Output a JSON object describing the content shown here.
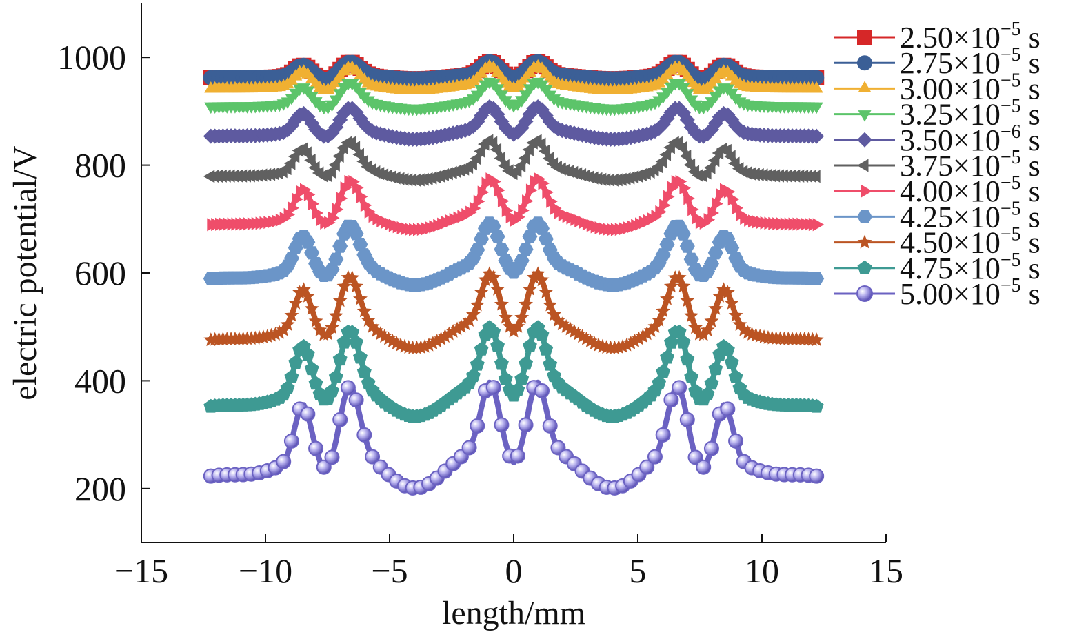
{
  "chart_data": {
    "type": "line",
    "xlabel": "length/mm",
    "ylabel": "electric potential/V",
    "xlim": [
      -15,
      15
    ],
    "ylim": [
      100,
      1100
    ],
    "x_ticks": [
      -15,
      -10,
      -5,
      0,
      5,
      10,
      15
    ],
    "x_tick_labels": [
      "−15",
      "−10",
      "−5",
      "0",
      "5",
      "10",
      "15"
    ],
    "y_ticks": [
      200,
      400,
      600,
      800,
      1000
    ],
    "y_tick_labels": [
      "200",
      "400",
      "600",
      "800",
      "1000"
    ],
    "grid": false,
    "legend_position": "right",
    "x_range": [
      -12.2,
      12.2
    ],
    "series": [
      {
        "name": "2.50×10⁻⁵ s",
        "color": "#d62728",
        "marker": "square",
        "base": 960,
        "a1": 70,
        "a2": 75,
        "amp": 0.35
      },
      {
        "name": "2.75×10⁻⁵ s",
        "color": "#3b5f96",
        "marker": "circle",
        "base": 960,
        "a1": 70,
        "a2": 75,
        "amp": 0.35
      },
      {
        "name": "3.00×10⁻⁵ s",
        "color": "#f0b032",
        "marker": "triangle-up",
        "base": 938,
        "a1": 85,
        "a2": 95,
        "amp": 0.45
      },
      {
        "name": "3.25×10⁻⁵ s",
        "color": "#5cc46a",
        "marker": "triangle-down",
        "base": 905,
        "a1": 95,
        "a2": 100,
        "amp": 0.5
      },
      {
        "name": "3.50×10⁻⁶ s",
        "color": "#5e5aa0",
        "marker": "diamond",
        "base": 848,
        "a1": 105,
        "a2": 110,
        "amp": 0.6
      },
      {
        "name": "3.75×10⁻⁵ s",
        "color": "#606060",
        "marker": "triangle-left",
        "base": 772,
        "a1": 115,
        "a2": 125,
        "amp": 0.7
      },
      {
        "name": "4.00×10⁻⁵ s",
        "color": "#ef4d6a",
        "marker": "triangle-right",
        "base": 680,
        "a1": 135,
        "a2": 150,
        "amp": 0.8
      },
      {
        "name": "4.25×10⁻⁵ s",
        "color": "#6b95c8",
        "marker": "hexagon",
        "base": 577,
        "a1": 155,
        "a2": 170,
        "amp": 0.9
      },
      {
        "name": "4.50×10⁻⁵ s",
        "color": "#bb5423",
        "marker": "star",
        "base": 460,
        "a1": 175,
        "a2": 190,
        "amp": 1.0
      },
      {
        "name": "4.75×10⁻⁵ s",
        "color": "#3e9a93",
        "marker": "pentagon",
        "base": 333,
        "a1": 195,
        "a2": 215,
        "amp": 1.1
      },
      {
        "name": "5.00×10⁻⁵ s",
        "color": "#6b62c2",
        "marker": "sphere",
        "base": 200,
        "a1": 215,
        "a2": 245,
        "amp": 1.2
      }
    ]
  }
}
